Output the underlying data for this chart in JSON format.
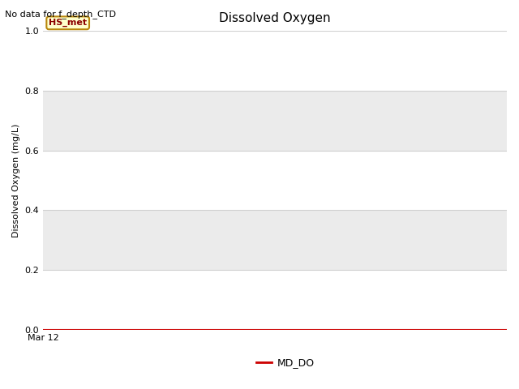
{
  "title": "Dissolved Oxygen",
  "ylabel": "Dissolved Oxygen (mg/L)",
  "ylim": [
    0.0,
    1.0
  ],
  "yticks": [
    0.0,
    0.2,
    0.4,
    0.6,
    0.8,
    1.0
  ],
  "xlabel_tick": "Mar 12",
  "no_data_text": "No data for f_depth_CTD",
  "legend_label": "MD_DO",
  "legend_line_color": "#cc0000",
  "hs_met_label": "HS_met",
  "hs_met_bg": "#ffffcc",
  "hs_met_border": "#b8860b",
  "hs_met_text_color": "#8b0000",
  "fig_bg_color": "#ffffff",
  "plot_bg_color": "#ffffff",
  "band_color_light": "#ebebeb",
  "band_color_white": "#ffffff",
  "grid_line_color": "#d0d0d0",
  "title_fontsize": 11,
  "label_fontsize": 8,
  "tick_fontsize": 8,
  "no_data_fontsize": 8,
  "legend_fontsize": 9,
  "red_line_y": 0.0,
  "figsize": [
    6.4,
    4.8
  ],
  "dpi": 100
}
